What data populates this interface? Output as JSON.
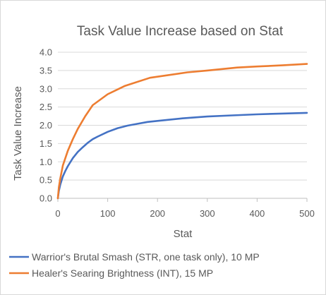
{
  "chart_data": {
    "type": "line",
    "title": "Task Value Increase based on Stat",
    "xlabel": "Stat",
    "ylabel": "Task Value Increase",
    "xlim": [
      0,
      500
    ],
    "ylim": [
      0.0,
      4.0
    ],
    "xticks": [
      "0",
      "100",
      "200",
      "300",
      "400",
      "500"
    ],
    "yticks": [
      "0.0",
      "0.5",
      "1.0",
      "1.5",
      "2.0",
      "2.5",
      "3.0",
      "3.5",
      "4.0"
    ],
    "grid": true,
    "legend_position": "bottom",
    "series": [
      {
        "name": "Warrior's Brutal Smash (STR, one task only), 10 MP",
        "color": "#4472c4",
        "x": [
          0,
          2,
          5,
          10,
          15,
          20,
          30,
          40,
          50,
          60,
          70,
          80,
          100,
          120,
          140,
          160,
          180,
          200,
          250,
          300,
          350,
          400,
          450,
          500
        ],
        "y": [
          0.0,
          0.2,
          0.38,
          0.6,
          0.75,
          0.88,
          1.1,
          1.27,
          1.4,
          1.52,
          1.62,
          1.69,
          1.82,
          1.92,
          1.99,
          2.04,
          2.09,
          2.12,
          2.19,
          2.24,
          2.27,
          2.3,
          2.32,
          2.34
        ]
      },
      {
        "name": "Healer's Searing Brightness (INT), 15 MP",
        "color": "#ed7d31",
        "x": [
          0,
          2,
          5,
          10,
          15,
          20,
          30,
          40,
          55,
          70,
          100,
          135,
          185,
          260,
          300,
          360,
          400,
          450,
          500
        ],
        "y": [
          0.0,
          0.3,
          0.55,
          0.9,
          1.1,
          1.3,
          1.62,
          1.9,
          2.25,
          2.55,
          2.85,
          3.08,
          3.3,
          3.45,
          3.5,
          3.58,
          3.61,
          3.64,
          3.68
        ]
      }
    ]
  }
}
